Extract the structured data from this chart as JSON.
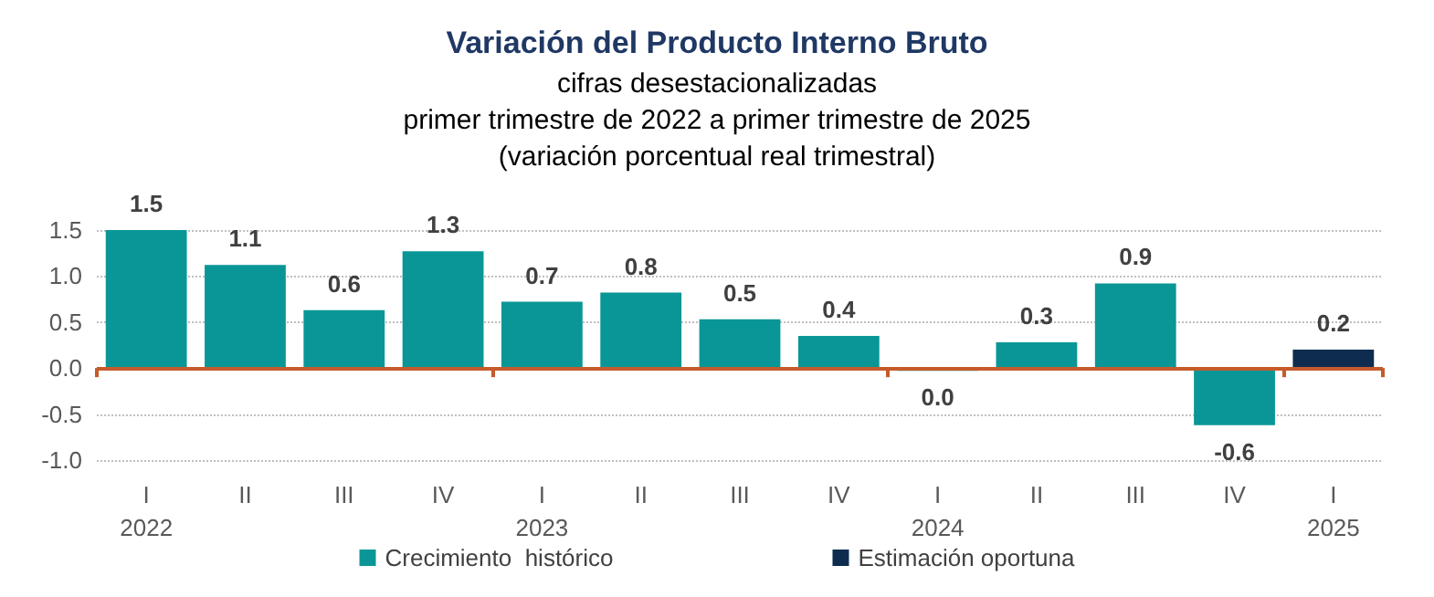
{
  "chart_data": {
    "type": "bar",
    "title": "Variación del Producto Interno Bruto",
    "subtitle": "cifras desestacionalizadas\nprimer trimestre de 2022 a primer trimestre de 2025\n(variación porcentual real trimestral)",
    "categories": [
      "I\n2022",
      "II",
      "III",
      "IV",
      "I\n2023",
      "II",
      "III",
      "IV",
      "I\n2024",
      "II",
      "III",
      "IV",
      "I\n2025"
    ],
    "series": [
      {
        "name": "Crecimiento  histórico",
        "color": "#0a9696",
        "values": [
          1.5,
          1.12,
          0.63,
          1.27,
          0.72,
          0.82,
          0.53,
          0.35,
          -0.03,
          0.28,
          0.92,
          -0.62,
          null
        ],
        "value_labels": [
          "1.5",
          "1.1",
          "0.6",
          "1.3",
          "0.7",
          "0.8",
          "0.5",
          "0.4",
          "0.0",
          "0.3",
          "0.9",
          "-0.6",
          null
        ]
      },
      {
        "name": "Estimación oportuna",
        "color": "#0d2c4f",
        "values": [
          null,
          null,
          null,
          null,
          null,
          null,
          null,
          null,
          null,
          null,
          null,
          null,
          0.2
        ],
        "value_labels": [
          null,
          null,
          null,
          null,
          null,
          null,
          null,
          null,
          null,
          null,
          null,
          null,
          "0.2"
        ]
      }
    ],
    "ylim": [
      -1.0,
      1.5
    ],
    "yticks": [
      {
        "value": -1.0,
        "label": "-1.0"
      },
      {
        "value": -0.5,
        "label": "-0.5"
      },
      {
        "value": 0,
        "label": "0.0"
      },
      {
        "value": 0.5,
        "label": "0.5"
      },
      {
        "value": 1.0,
        "label": "1.0"
      },
      {
        "value": 1.5,
        "label": "1.5"
      }
    ],
    "ref_lines": [
      {
        "axis": "y",
        "value": 0,
        "color": "#c55a2a"
      }
    ],
    "grid": "y",
    "legend": "bottom"
  }
}
